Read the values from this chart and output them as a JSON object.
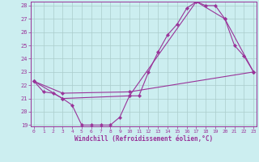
{
  "xlabel": "Windchill (Refroidissement éolien,°C)",
  "bg_color": "#cceef0",
  "line_color": "#993399",
  "grid_color": "#aacccc",
  "x_min": 0,
  "x_max": 23,
  "y_min": 19,
  "y_max": 28,
  "line1_x": [
    0,
    1,
    2,
    3,
    4,
    5,
    6,
    7,
    8,
    9,
    10,
    11,
    12,
    13,
    14,
    15,
    16,
    17,
    18,
    19,
    20,
    21,
    22,
    23
  ],
  "line1_y": [
    22.3,
    21.5,
    21.4,
    21.0,
    20.5,
    19.0,
    19.0,
    19.0,
    19.0,
    19.6,
    21.2,
    21.2,
    23.0,
    24.5,
    25.8,
    26.6,
    27.8,
    28.3,
    28.0,
    28.0,
    27.0,
    25.0,
    24.2,
    23.0
  ],
  "line2_x": [
    0,
    3,
    10,
    17,
    20,
    23
  ],
  "line2_y": [
    22.3,
    21.0,
    21.2,
    28.3,
    27.0,
    23.0
  ],
  "line3_x": [
    0,
    3,
    10,
    23
  ],
  "line3_y": [
    22.3,
    21.4,
    21.5,
    23.0
  ],
  "yticks": [
    19,
    20,
    21,
    22,
    23,
    24,
    25,
    26,
    27,
    28
  ],
  "xticks": [
    0,
    1,
    2,
    3,
    4,
    5,
    6,
    7,
    8,
    9,
    10,
    11,
    12,
    13,
    14,
    15,
    16,
    17,
    18,
    19,
    20,
    21,
    22,
    23
  ]
}
